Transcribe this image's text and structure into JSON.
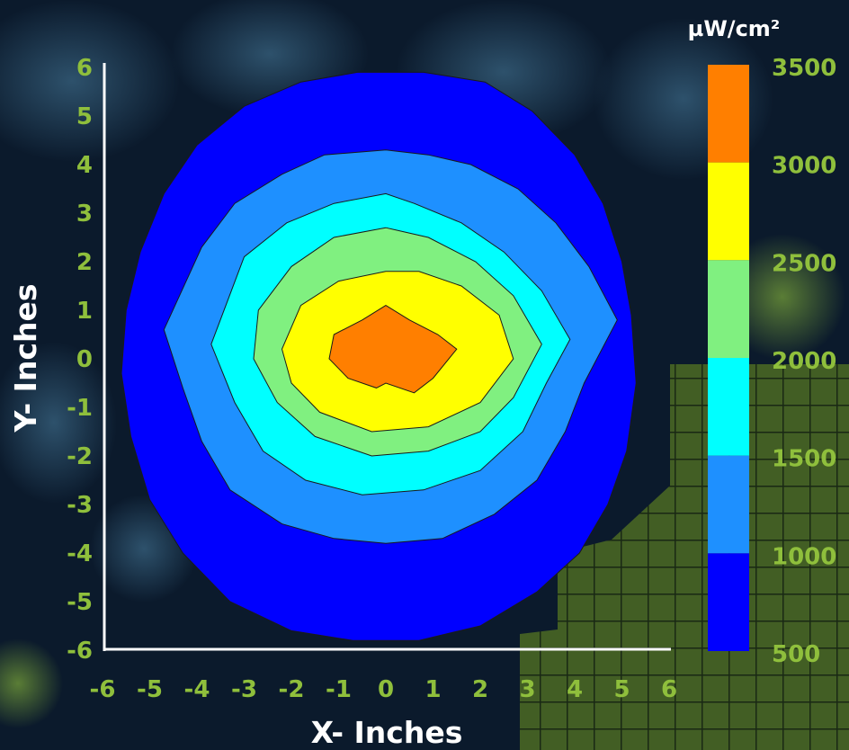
{
  "colors": {
    "tick_text": "#8fbf3c",
    "axis": "#ffffff",
    "background": "#0b1a2c",
    "grid_panel": "#5a7a2a"
  },
  "chart_data": {
    "type": "contour",
    "xlabel": "X- Inches",
    "ylabel": "Y- Inches",
    "xlim": [
      -6,
      6
    ],
    "ylim": [
      -6,
      6
    ],
    "x_ticks": [
      "-6",
      "-5",
      "-4",
      "-3",
      "-2",
      "-1",
      "0",
      "1",
      "2",
      "3",
      "4",
      "5",
      "6"
    ],
    "y_ticks": [
      "6",
      "5",
      "4",
      "3",
      "2",
      "1",
      "0",
      "-1",
      "-2",
      "-3",
      "-4",
      "-5",
      "-6"
    ],
    "grid": false,
    "colorbar": {
      "unit": "µW/cm²",
      "position": "right",
      "tick_labels": [
        "3500",
        "3000",
        "2500",
        "2000",
        "1500",
        "1000",
        "500"
      ],
      "bands": [
        {
          "range": [
            3000,
            3500
          ],
          "color": "#ff7f00"
        },
        {
          "range": [
            2500,
            3000
          ],
          "color": "#ffff00"
        },
        {
          "range": [
            2000,
            2500
          ],
          "color": "#80f080"
        },
        {
          "range": [
            1500,
            2000
          ],
          "color": "#00ffff"
        },
        {
          "range": [
            1000,
            1500
          ],
          "color": "#1e90ff"
        },
        {
          "range": [
            500,
            1000
          ],
          "color": "#0000ff"
        }
      ]
    },
    "contours": [
      {
        "level": "500-1000",
        "color": "#0000ff",
        "points": [
          [
            -0.6,
            5.9
          ],
          [
            -1.8,
            5.7
          ],
          [
            -3.0,
            5.2
          ],
          [
            -4.0,
            4.4
          ],
          [
            -4.7,
            3.4
          ],
          [
            -5.2,
            2.2
          ],
          [
            -5.5,
            1.0
          ],
          [
            -5.6,
            -0.3
          ],
          [
            -5.4,
            -1.6
          ],
          [
            -5.0,
            -2.9
          ],
          [
            -4.3,
            -4.0
          ],
          [
            -3.3,
            -5.0
          ],
          [
            -2.0,
            -5.6
          ],
          [
            -0.7,
            -5.8
          ],
          [
            0.7,
            -5.8
          ],
          [
            2.0,
            -5.5
          ],
          [
            3.2,
            -4.8
          ],
          [
            4.1,
            -4.0
          ],
          [
            4.7,
            -3.0
          ],
          [
            5.1,
            -1.9
          ],
          [
            5.3,
            -0.5
          ],
          [
            5.2,
            0.9
          ],
          [
            5.0,
            2.0
          ],
          [
            4.6,
            3.2
          ],
          [
            4.0,
            4.2
          ],
          [
            3.1,
            5.1
          ],
          [
            2.1,
            5.7
          ],
          [
            0.8,
            5.9
          ]
        ]
      },
      {
        "level": "1000-1500",
        "color": "#1e90ff",
        "points": [
          [
            0.0,
            4.3
          ],
          [
            -1.3,
            4.2
          ],
          [
            -2.2,
            3.8
          ],
          [
            -3.2,
            3.2
          ],
          [
            -3.9,
            2.3
          ],
          [
            -4.7,
            0.6
          ],
          [
            -4.3,
            -0.6
          ],
          [
            -3.9,
            -1.7
          ],
          [
            -3.3,
            -2.7
          ],
          [
            -2.2,
            -3.4
          ],
          [
            -1.1,
            -3.7
          ],
          [
            0.0,
            -3.8
          ],
          [
            1.2,
            -3.7
          ],
          [
            2.3,
            -3.2
          ],
          [
            3.2,
            -2.5
          ],
          [
            3.8,
            -1.5
          ],
          [
            4.2,
            -0.5
          ],
          [
            4.9,
            0.8
          ],
          [
            4.3,
            1.9
          ],
          [
            3.6,
            2.8
          ],
          [
            2.8,
            3.5
          ],
          [
            1.8,
            4.0
          ],
          [
            0.9,
            4.2
          ]
        ]
      },
      {
        "level": "1500-2000",
        "color": "#00ffff",
        "points": [
          [
            0.0,
            3.4
          ],
          [
            -1.1,
            3.2
          ],
          [
            -2.1,
            2.8
          ],
          [
            -3.0,
            2.1
          ],
          [
            -3.7,
            0.3
          ],
          [
            -3.2,
            -0.9
          ],
          [
            -2.6,
            -1.9
          ],
          [
            -1.7,
            -2.5
          ],
          [
            -0.5,
            -2.8
          ],
          [
            0.8,
            -2.7
          ],
          [
            2.0,
            -2.3
          ],
          [
            2.9,
            -1.5
          ],
          [
            3.4,
            -0.5
          ],
          [
            3.9,
            0.4
          ],
          [
            3.3,
            1.4
          ],
          [
            2.5,
            2.2
          ],
          [
            1.6,
            2.8
          ],
          [
            0.6,
            3.2
          ]
        ]
      },
      {
        "level": "2000-2500",
        "color": "#80f080",
        "points": [
          [
            0.0,
            2.7
          ],
          [
            -1.1,
            2.5
          ],
          [
            -2.0,
            1.9
          ],
          [
            -2.7,
            1.0
          ],
          [
            -2.8,
            0.0
          ],
          [
            -2.3,
            -0.9
          ],
          [
            -1.5,
            -1.6
          ],
          [
            -0.3,
            -2.0
          ],
          [
            0.9,
            -1.9
          ],
          [
            2.0,
            -1.5
          ],
          [
            2.7,
            -0.8
          ],
          [
            3.3,
            0.3
          ],
          [
            2.7,
            1.3
          ],
          [
            1.9,
            2.0
          ],
          [
            0.9,
            2.5
          ]
        ]
      },
      {
        "level": "2500-3000",
        "color": "#ffff00",
        "points": [
          [
            0.0,
            1.8
          ],
          [
            -1.0,
            1.6
          ],
          [
            -1.8,
            1.1
          ],
          [
            -2.2,
            0.2
          ],
          [
            -2.0,
            -0.5
          ],
          [
            -1.4,
            -1.1
          ],
          [
            -0.3,
            -1.5
          ],
          [
            0.9,
            -1.4
          ],
          [
            2.0,
            -0.9
          ],
          [
            2.7,
            0.0
          ],
          [
            2.4,
            0.9
          ],
          [
            1.6,
            1.5
          ],
          [
            0.7,
            1.8
          ]
        ]
      },
      {
        "level": "3000-3500",
        "color": "#ff7f00",
        "points": [
          [
            0.0,
            1.1
          ],
          [
            -0.5,
            0.8
          ],
          [
            -1.1,
            0.5
          ],
          [
            -1.2,
            0.0
          ],
          [
            -0.8,
            -0.4
          ],
          [
            -0.2,
            -0.6
          ],
          [
            0.0,
            -0.5
          ],
          [
            0.6,
            -0.7
          ],
          [
            1.0,
            -0.4
          ],
          [
            1.5,
            0.2
          ],
          [
            1.1,
            0.5
          ],
          [
            0.5,
            0.8
          ]
        ]
      }
    ]
  }
}
